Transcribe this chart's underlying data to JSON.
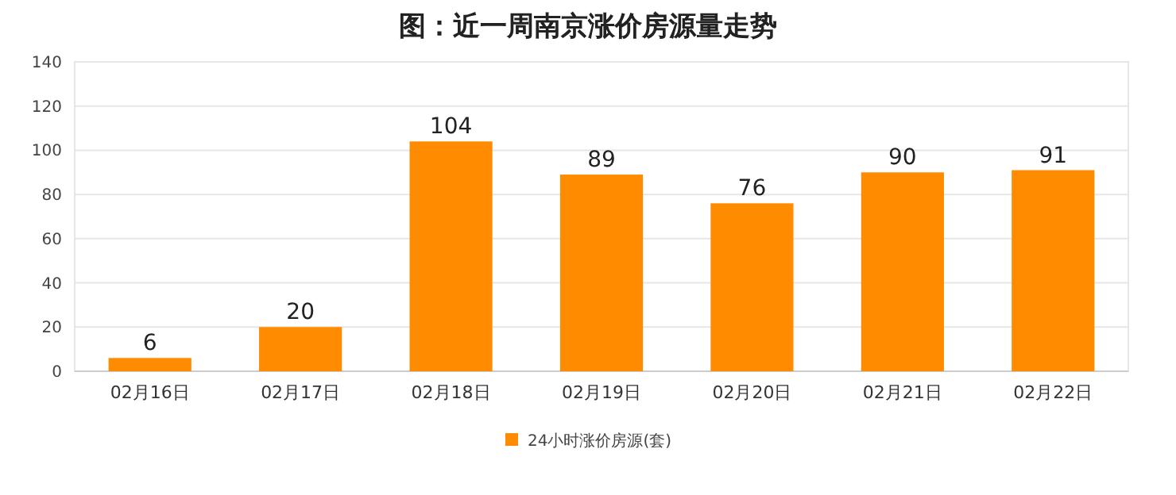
{
  "chart_data": {
    "type": "bar",
    "title": "图：近一周南京涨价房源量走势",
    "categories": [
      "02月16日",
      "02月17日",
      "02月18日",
      "02月19日",
      "02月20日",
      "02月21日",
      "02月22日"
    ],
    "series": [
      {
        "name": "24小时涨价房源(套)",
        "color": "#ff8c00",
        "values": [
          6,
          20,
          104,
          89,
          76,
          90,
          91
        ]
      }
    ],
    "ylim": [
      0,
      140
    ],
    "yticks": [
      0,
      20,
      40,
      60,
      80,
      100,
      120,
      140
    ],
    "grid": "y",
    "legend": "bottom",
    "data_labels": true
  }
}
